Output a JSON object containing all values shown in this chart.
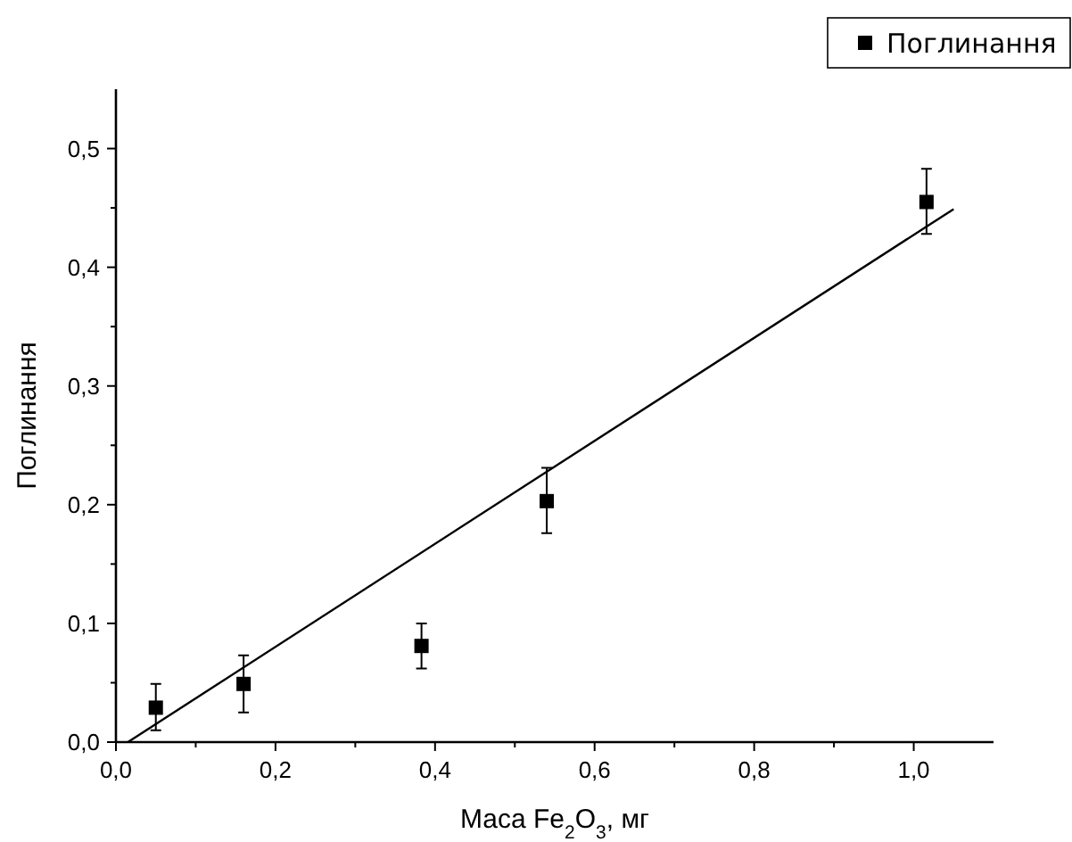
{
  "chart_data": {
    "type": "scatter",
    "xlabel": "Маса Fe$_{2}$O$_{3}$, мг",
    "ylabel": "Поглинання",
    "series": [
      {
        "name": "Поглинання",
        "marker": "square",
        "color": "#000000",
        "x": [
          0.05,
          0.16,
          0.383,
          0.54,
          1.016
        ],
        "values": [
          0.029,
          0.049,
          0.081,
          0.203,
          0.455
        ],
        "errors": [
          [
            0.01,
            0.049
          ],
          [
            0.025,
            0.073
          ],
          [
            0.062,
            0.1
          ],
          [
            0.176,
            0.231
          ],
          [
            0.428,
            0.483
          ]
        ]
      },
      {
        "type": "line",
        "marker": "none",
        "color": "#000000",
        "x": [
          0.015,
          1.05
        ],
        "values": [
          0,
          0.449
        ]
      }
    ],
    "xlim": [
      0,
      1.1
    ],
    "ylim": [
      0,
      0.55
    ],
    "xticks": [
      {
        "value": 0,
        "label": "0,0"
      },
      {
        "value": 0.1,
        "label": null
      },
      {
        "value": 0.2,
        "label": "0,2"
      },
      {
        "value": 0.3,
        "label": null
      },
      {
        "value": 0.4,
        "label": "0,4"
      },
      {
        "value": 0.5,
        "label": null
      },
      {
        "value": 0.6,
        "label": "0,6"
      },
      {
        "value": 0.7,
        "label": null
      },
      {
        "value": 0.8,
        "label": "0,8"
      },
      {
        "value": 0.9,
        "label": null
      },
      {
        "value": 1.0,
        "label": "1,0"
      }
    ],
    "yticks": [
      {
        "value": 0,
        "label": "0,0"
      },
      {
        "value": 0.05,
        "label": null
      },
      {
        "value": 0.1,
        "label": "0,1"
      },
      {
        "value": 0.15,
        "label": null
      },
      {
        "value": 0.2,
        "label": "0,2"
      },
      {
        "value": 0.25,
        "label": null
      },
      {
        "value": 0.3,
        "label": "0,3"
      },
      {
        "value": 0.35,
        "label": null
      },
      {
        "value": 0.4,
        "label": "0,4"
      },
      {
        "value": 0.45,
        "label": null
      },
      {
        "value": 0.5,
        "label": "0,5"
      }
    ],
    "grid": false,
    "legend": "top right"
  }
}
